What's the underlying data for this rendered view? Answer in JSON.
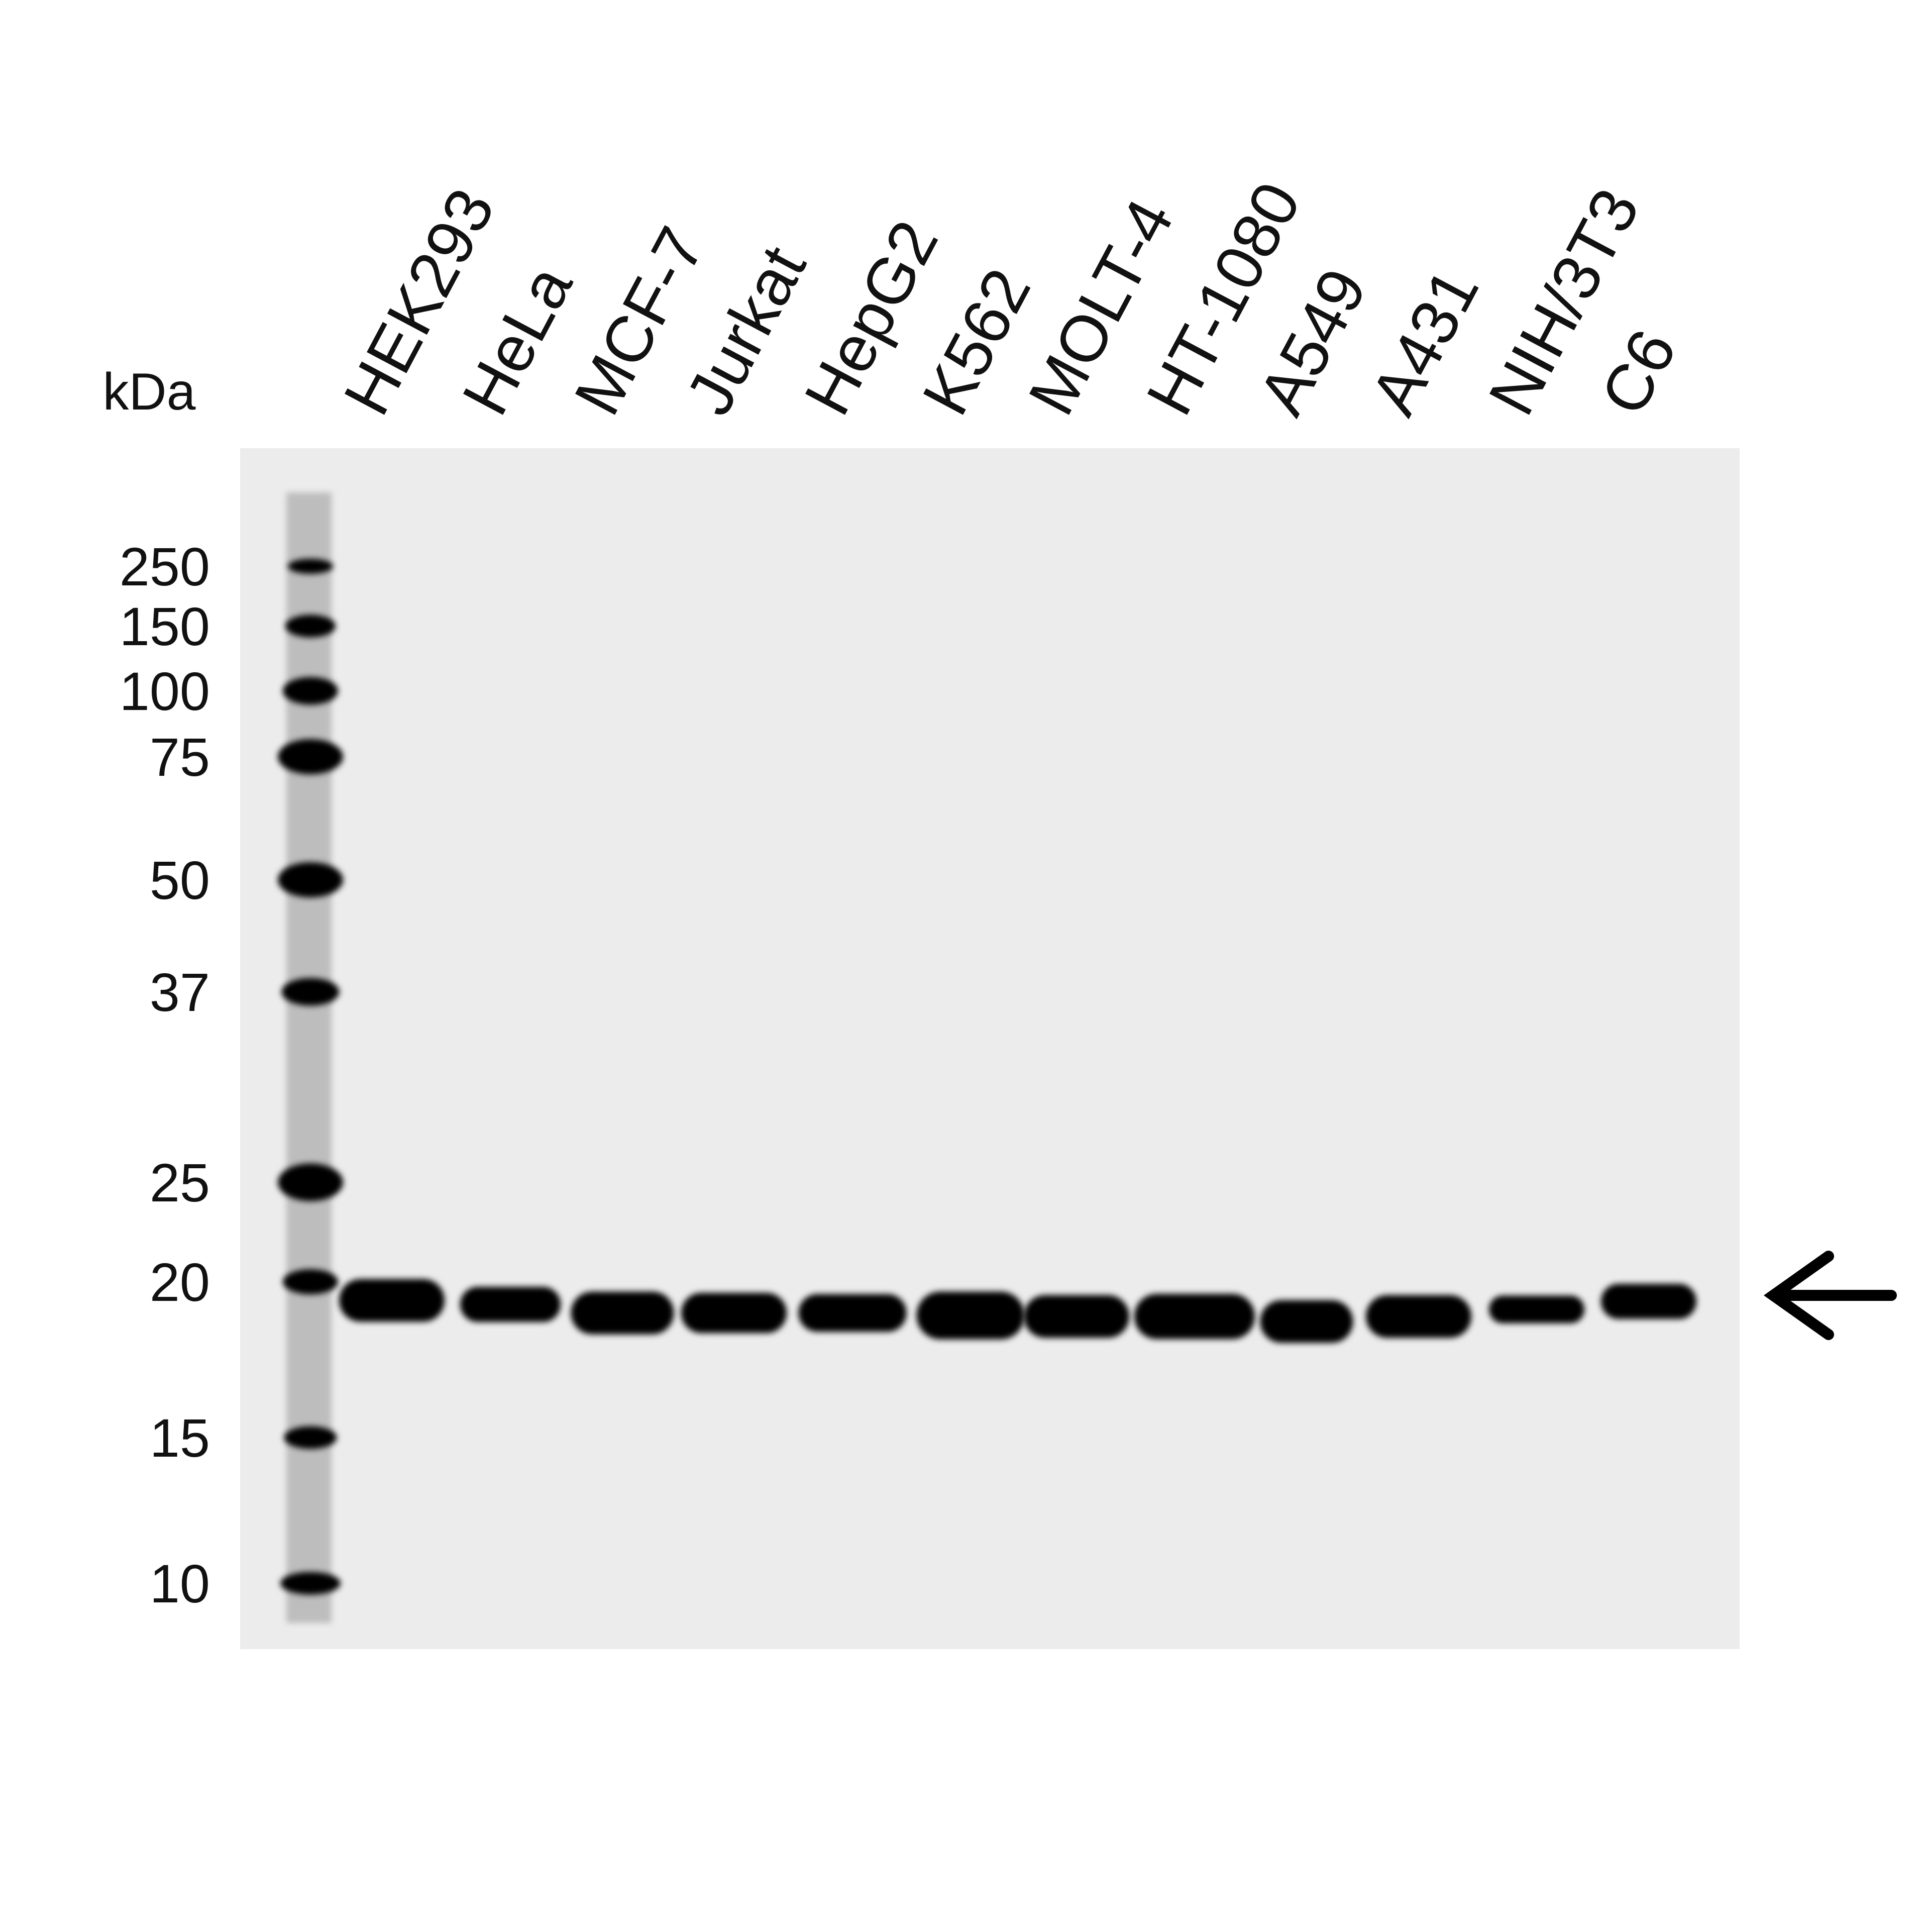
{
  "unit_label": "kDa",
  "markers": [
    250,
    150,
    100,
    75,
    50,
    37,
    25,
    20,
    15,
    10
  ],
  "lanes": [
    "HEK293",
    "HeLa",
    "MCF-7",
    "Jurkat",
    "HepG2",
    "K562",
    "MOLT-4",
    "HT-1080",
    "A549",
    "A431",
    "NIH/3T3",
    "C6"
  ]
}
